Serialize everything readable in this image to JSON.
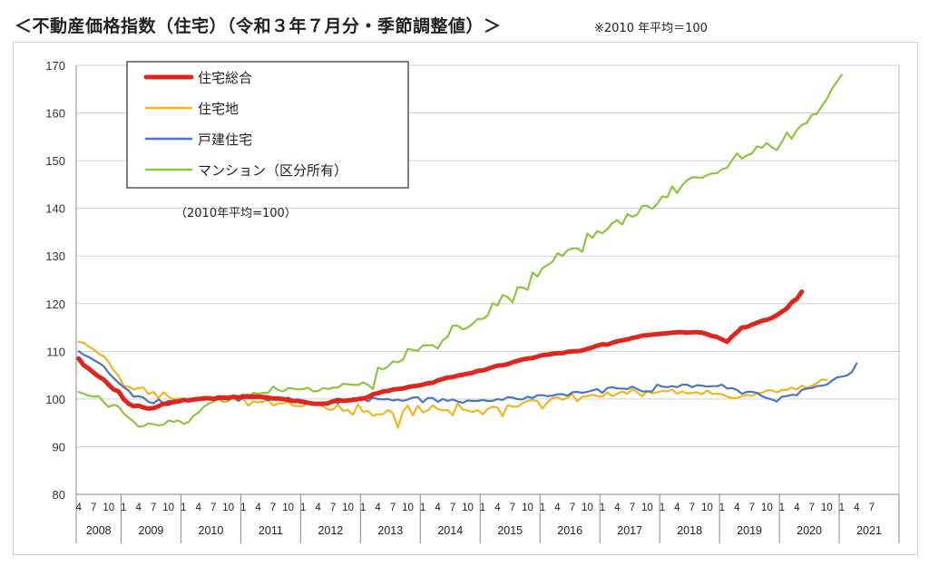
{
  "header": {
    "title": "＜不動産価格指数（住宅）（令和３年７月分・季節調整値）＞",
    "note": "※2010 年平均＝100"
  },
  "chart_data": {
    "type": "line",
    "title": "",
    "xlabel": "",
    "ylabel": "",
    "ylim": [
      80,
      170
    ],
    "yticks": [
      "80",
      "90",
      "100",
      "110",
      "120",
      "130",
      "140",
      "150",
      "160",
      "170"
    ],
    "grid": true,
    "legend_position": "top-left",
    "annotation": "（2010年平均=100）",
    "x_start": "2008-04",
    "month_tick_labels": [
      "1",
      "4",
      "7",
      "10"
    ],
    "years": [
      "2008",
      "2009",
      "2010",
      "2011",
      "2012",
      "2013",
      "2014",
      "2015",
      "2016",
      "2017",
      "2018",
      "2019",
      "2020",
      "2021"
    ],
    "series": [
      {
        "name": "住宅総合",
        "color": "#e0261c",
        "anchors": [
          [
            0,
            108.5
          ],
          [
            3,
            105.5
          ],
          [
            6,
            103
          ],
          [
            9,
            100
          ],
          [
            11,
            98.5
          ],
          [
            14,
            98
          ],
          [
            17,
            99
          ],
          [
            20,
            99.5
          ],
          [
            24,
            100
          ],
          [
            30,
            100.2
          ],
          [
            36,
            100.5
          ],
          [
            42,
            99.8
          ],
          [
            48,
            99
          ],
          [
            51,
            99.5
          ],
          [
            56,
            100
          ],
          [
            59,
            101
          ],
          [
            63,
            102
          ],
          [
            69,
            103
          ],
          [
            75,
            104.5
          ],
          [
            81,
            105.5
          ],
          [
            87,
            107
          ],
          [
            93,
            108.5
          ],
          [
            99,
            109.5
          ],
          [
            105,
            110
          ],
          [
            111,
            111.5
          ],
          [
            117,
            112.5
          ],
          [
            123,
            113.5
          ],
          [
            129,
            114
          ],
          [
            135,
            114
          ],
          [
            138,
            113
          ],
          [
            141,
            112
          ],
          [
            144,
            115
          ],
          [
            147,
            116
          ],
          [
            150,
            117
          ],
          [
            153,
            119
          ],
          [
            156,
            122.5
          ]
        ],
        "values": [
          108.5,
          107.1,
          106.4,
          105.5,
          104.7,
          104.1,
          103,
          102,
          101.6,
          100,
          99,
          98.5,
          98.6,
          98.2,
          98,
          98.1,
          98.5,
          99,
          99,
          99.4,
          99.5,
          99.8,
          99.7,
          99.9,
          100,
          100.1,
          100.2,
          100,
          100.3,
          100.3,
          100.2,
          100.5,
          100.3,
          100.5,
          100.6,
          100.5,
          100.5,
          100.4,
          100.3,
          100.1,
          100.1,
          100,
          99.8,
          99.6,
          99.6,
          99.4,
          99.2,
          99,
          99,
          99,
          99.1,
          99.5,
          99.8,
          99.6,
          99.7,
          99.8,
          100,
          100.1,
          100.4,
          101,
          101.2,
          101.6,
          101.7,
          102,
          102.1,
          102.2,
          102.5,
          102.7,
          102.8,
          103,
          103.3,
          103.4,
          103.9,
          104.2,
          104.5,
          104.6,
          104.9,
          105.1,
          105.3,
          105.5,
          105.9,
          106,
          106.3,
          106.7,
          107,
          107.1,
          107.3,
          107.7,
          108,
          108.3,
          108.5,
          108.6,
          108.9,
          109.2,
          109.3,
          109.5,
          109.6,
          109.6,
          109.9,
          110,
          110,
          110.2,
          110.5,
          110.8,
          111.2,
          111.5,
          111.4,
          111.8,
          112.1,
          112.3,
          112.5,
          112.8,
          113,
          113.3,
          113.4,
          113.5,
          113.6,
          113.7,
          113.8,
          113.9,
          114,
          114,
          113.9,
          114,
          114,
          113.9,
          113.6,
          113.2,
          113,
          112.5,
          112,
          113.1,
          114,
          115,
          115.1,
          115.6,
          116,
          116.4,
          116.6,
          117,
          117.6,
          118.3,
          119,
          120.3,
          121,
          122.5
        ]
      },
      {
        "name": "住宅地",
        "color": "#f2b51c",
        "anchors": [
          [
            0,
            112
          ],
          [
            3,
            111
          ],
          [
            5,
            109
          ],
          [
            8,
            105
          ],
          [
            11,
            102
          ],
          [
            15,
            101
          ],
          [
            19,
            100.5
          ],
          [
            24,
            100
          ],
          [
            30,
            100
          ],
          [
            36,
            99.5
          ],
          [
            42,
            99
          ],
          [
            48,
            98.5
          ],
          [
            54,
            98
          ],
          [
            60,
            97.5
          ],
          [
            66,
            97
          ],
          [
            72,
            97.5
          ],
          [
            78,
            97.5
          ],
          [
            84,
            98
          ],
          [
            90,
            98.5
          ],
          [
            96,
            99
          ],
          [
            102,
            100
          ],
          [
            108,
            100.5
          ],
          [
            114,
            101
          ],
          [
            120,
            101.5
          ],
          [
            126,
            101.5
          ],
          [
            132,
            101
          ],
          [
            138,
            100.5
          ],
          [
            144,
            101
          ],
          [
            150,
            102
          ],
          [
            156,
            104
          ]
        ],
        "values": [
          112,
          111.8,
          111,
          110.4,
          109.5,
          109,
          107.8,
          106,
          104.9,
          102.8,
          102.6,
          102,
          102.3,
          102.4,
          101,
          101.5,
          100.2,
          101.4,
          100.5,
          99.9,
          100.1,
          99.9,
          100,
          100,
          99.9,
          100.5,
          100.1,
          100.1,
          100.6,
          99.9,
          100.7,
          100,
          99.9,
          100.1,
          98.6,
          99.5,
          99.3,
          99.4,
          99.9,
          98.6,
          99.1,
          99.1,
          99.4,
          98.6,
          98.5,
          98.5,
          99.3,
          98.8,
          98.9,
          98.5,
          97.8,
          97.8,
          98.8,
          97.5,
          97.7,
          96.7,
          98.9,
          97.3,
          97.5,
          96.5,
          96.8,
          96.8,
          97.7,
          97,
          94,
          97.4,
          98.6,
          96.6,
          98.6,
          97.2,
          97.6,
          98.7,
          97.9,
          97.6,
          97.7,
          96.6,
          99.1,
          97.8,
          97.6,
          97.3,
          97.7,
          96.8,
          97.9,
          98.4,
          98.2,
          96.4,
          98.7,
          98.4,
          98.4,
          99.1,
          99.6,
          99.8,
          99.5,
          98,
          99.3,
          100.2,
          100.4,
          99.8,
          100.3,
          101,
          99.5,
          100.5,
          100.6,
          100.9,
          100.6,
          100.5,
          101.4,
          100.6,
          101.1,
          101.6,
          101.1,
          102.1,
          101.4,
          100.6,
          101.7,
          101.2,
          101.4,
          101.7,
          101.6,
          102,
          101.1,
          101.6,
          101.2,
          101.3,
          101.4,
          101,
          101.8,
          101.1,
          101.1,
          101,
          100.5,
          100.2,
          100.2,
          100.6,
          100.9,
          100.6,
          101.3,
          101.3,
          101.8,
          101.8,
          101.4,
          101.9,
          101.9,
          102.4,
          102,
          102.8,
          102.3,
          102.8,
          103.3,
          104.1,
          104
        ]
      },
      {
        "name": "戸建住宅",
        "color": "#4a74c4",
        "anchors": [
          [
            0,
            110
          ],
          [
            3,
            108
          ],
          [
            6,
            105.5
          ],
          [
            9,
            102.5
          ],
          [
            11,
            100.5
          ],
          [
            14,
            99.5
          ],
          [
            17,
            99.5
          ],
          [
            20,
            99.5
          ],
          [
            24,
            100
          ],
          [
            30,
            100
          ],
          [
            36,
            100
          ],
          [
            42,
            100
          ],
          [
            48,
            99
          ],
          [
            54,
            99.5
          ],
          [
            60,
            100
          ],
          [
            66,
            100
          ],
          [
            72,
            99.5
          ],
          [
            78,
            99.5
          ],
          [
            84,
            100
          ],
          [
            90,
            100.5
          ],
          [
            96,
            101
          ],
          [
            102,
            101.5
          ],
          [
            108,
            102
          ],
          [
            114,
            102
          ],
          [
            120,
            102.5
          ],
          [
            126,
            102.5
          ],
          [
            132,
            102.5
          ],
          [
            138,
            100.5
          ],
          [
            142,
            99.5
          ],
          [
            146,
            101.5
          ],
          [
            150,
            103
          ],
          [
            153,
            105
          ],
          [
            156,
            107.5
          ]
        ],
        "values": [
          110,
          109.3,
          108.8,
          108.2,
          107.6,
          106.9,
          105.5,
          104.4,
          103.4,
          102.5,
          101.8,
          100.5,
          100.6,
          100.3,
          99.4,
          99.1,
          99.9,
          99.1,
          99.6,
          99.5,
          99.4,
          99.6,
          99.6,
          99.8,
          100,
          100.3,
          100.1,
          100.1,
          100,
          100,
          100.1,
          100.3,
          99.6,
          100.2,
          100.2,
          100.1,
          100.3,
          100.1,
          99.7,
          100.3,
          100,
          99.8,
          100.3,
          99.8,
          99.9,
          99.4,
          99.4,
          99,
          98.9,
          99.2,
          99.3,
          99.4,
          99.1,
          99.8,
          99.7,
          100.2,
          100.1,
          100.1,
          99.5,
          100.3,
          100,
          99.9,
          100,
          99.7,
          99.9,
          99.6,
          99.9,
          100.3,
          100.4,
          99.3,
          100.2,
          100.2,
          99.4,
          100,
          99.6,
          99.9,
          99.5,
          99.2,
          99.7,
          99.6,
          99.6,
          99.8,
          99.6,
          99.6,
          100,
          99.8,
          100.4,
          100.3,
          100,
          99.9,
          100.5,
          100.2,
          100.8,
          100.8,
          100.6,
          100.7,
          101,
          101,
          100.7,
          101.4,
          101.5,
          101.3,
          101.5,
          101.8,
          102.1,
          101.3,
          102.3,
          102.5,
          102.2,
          102.2,
          102.1,
          102.6,
          102.1,
          101.6,
          101.6,
          101.6,
          103,
          102.6,
          102.5,
          102.7,
          102.5,
          103,
          103,
          102.5,
          102.9,
          102.8,
          102.6,
          102.7,
          102.7,
          103,
          102.2,
          102.3,
          101.9,
          101.1,
          101.5,
          101.5,
          101.3,
          100.6,
          100.2,
          99.9,
          99.5,
          100.5,
          100.6,
          100.9,
          100.8,
          101.9,
          102.2,
          102.3,
          102.7,
          102.8,
          103,
          103.8,
          104.5,
          104.7,
          104.9,
          105.6,
          107.5
        ]
      },
      {
        "name": "マンション（区分所有）",
        "color": "#8cc63f",
        "anchors": [
          [
            0,
            101.5
          ],
          [
            3,
            100.5
          ],
          [
            6,
            99
          ],
          [
            9,
            97
          ],
          [
            11,
            95
          ],
          [
            14,
            94.5
          ],
          [
            17,
            95
          ],
          [
            20,
            95.5
          ],
          [
            23,
            96.5
          ],
          [
            26,
            99
          ],
          [
            30,
            100
          ],
          [
            36,
            101
          ],
          [
            42,
            102
          ],
          [
            48,
            102
          ],
          [
            54,
            102.5
          ],
          [
            60,
            103
          ],
          [
            63,
            106
          ],
          [
            66,
            108
          ],
          [
            69,
            110
          ],
          [
            72,
            111
          ],
          [
            75,
            113
          ],
          [
            78,
            115
          ],
          [
            81,
            117
          ],
          [
            84,
            120
          ],
          [
            87,
            121
          ],
          [
            90,
            123
          ],
          [
            93,
            126
          ],
          [
            96,
            128
          ],
          [
            99,
            130
          ],
          [
            102,
            131.5
          ],
          [
            105,
            134
          ],
          [
            108,
            135.5
          ],
          [
            111,
            137
          ],
          [
            114,
            139
          ],
          [
            117,
            140.5
          ],
          [
            120,
            142.5
          ],
          [
            123,
            144
          ],
          [
            126,
            146.5
          ],
          [
            129,
            147
          ],
          [
            132,
            148
          ],
          [
            135,
            150
          ],
          [
            138,
            151
          ],
          [
            141,
            152.5
          ],
          [
            144,
            153
          ],
          [
            147,
            155.5
          ],
          [
            150,
            157.5
          ],
          [
            153,
            161
          ],
          [
            155,
            165
          ],
          [
            156,
            168
          ]
        ],
        "values": [
          101.5,
          101.1,
          100.7,
          100.5,
          100.6,
          99.4,
          98.3,
          98.8,
          98.4,
          97,
          96.1,
          95.3,
          94.2,
          94.3,
          94.9,
          94.7,
          94.5,
          94.6,
          95.5,
          95.2,
          95.5,
          94.8,
          95.1,
          96.5,
          97.1,
          98.3,
          99,
          99.4,
          100,
          99.4,
          99.6,
          100.4,
          100.5,
          101,
          100.1,
          101.3,
          101.1,
          101.3,
          101.3,
          102.6,
          101.9,
          101.6,
          102.3,
          102.2,
          102,
          102.1,
          102.4,
          101.6,
          101.7,
          102.3,
          102.1,
          102.4,
          102.4,
          103.2,
          103.1,
          103,
          102.9,
          103.5,
          103,
          102.1,
          106.6,
          106.2,
          106.8,
          107.9,
          107.7,
          108.2,
          110.5,
          110.3,
          110.1,
          111.2,
          111.3,
          111.3,
          110.6,
          112.3,
          113.1,
          115.4,
          115.4,
          114.6,
          115,
          115.8,
          116.8,
          116.8,
          117.5,
          120.1,
          119.6,
          121.8,
          121.4,
          120.3,
          123.4,
          123.4,
          122.9,
          126.5,
          125.7,
          127.5,
          128.1,
          128.8,
          130.6,
          130,
          131.2,
          131.6,
          131.6,
          130.9,
          134.7,
          133.8,
          135.2,
          134.8,
          135.6,
          136.9,
          137.5,
          136.6,
          138.8,
          138.2,
          138.7,
          140.5,
          140.5,
          139.9,
          140.9,
          142.5,
          142.3,
          144.6,
          143.2,
          144.8,
          145.9,
          146.5,
          146.5,
          146.4,
          147,
          147.3,
          147.4,
          148.2,
          148.5,
          150.1,
          151.5,
          150.4,
          151.1,
          151.5,
          153,
          152.7,
          153.7,
          152.8,
          152.2,
          153.9,
          155.9,
          154.6,
          156.4,
          157.5,
          157.9,
          159.6,
          159.8,
          161.4,
          162.9,
          165,
          166.5,
          168
        ]
      }
    ]
  }
}
